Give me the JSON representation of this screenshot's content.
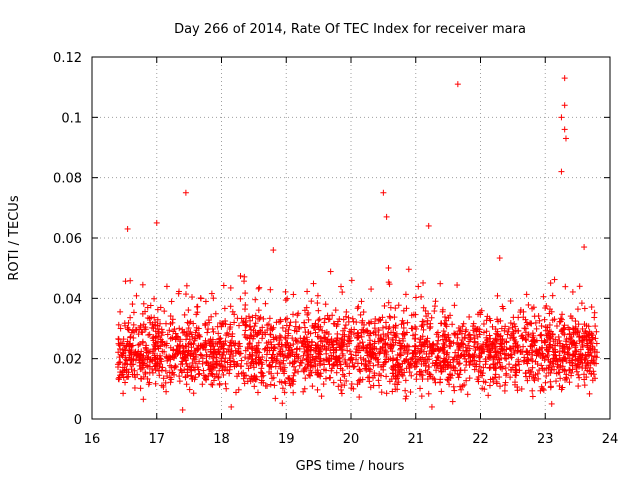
{
  "chart_data": {
    "type": "scatter",
    "title": "Day 266 of 2014, Rate Of TEC Index for receiver mara",
    "xlabel": "GPS time / hours",
    "ylabel": "ROTI / TECUs",
    "xlim": [
      16,
      24
    ],
    "ylim": [
      0,
      0.12
    ],
    "xticks": [
      "16",
      "17",
      "18",
      "19",
      "20",
      "21",
      "22",
      "23",
      "24"
    ],
    "yticks": [
      "0",
      "0.02",
      "0.04",
      "0.06",
      "0.08",
      "0.1",
      "0.12"
    ],
    "grid": true,
    "marker": "+",
    "color": "#ff0000",
    "bulk": {
      "x_range": [
        16.4,
        23.8
      ],
      "typical_y_range": [
        0.005,
        0.045
      ],
      "approx_points": 2600
    },
    "notable_points": [
      {
        "x": 16.55,
        "y": 0.063
      },
      {
        "x": 17.0,
        "y": 0.065
      },
      {
        "x": 17.45,
        "y": 0.075
      },
      {
        "x": 18.8,
        "y": 0.056
      },
      {
        "x": 20.5,
        "y": 0.075
      },
      {
        "x": 20.55,
        "y": 0.067
      },
      {
        "x": 21.2,
        "y": 0.064
      },
      {
        "x": 21.65,
        "y": 0.111
      },
      {
        "x": 23.3,
        "y": 0.113
      },
      {
        "x": 23.3,
        "y": 0.104
      },
      {
        "x": 23.25,
        "y": 0.1
      },
      {
        "x": 23.3,
        "y": 0.096
      },
      {
        "x": 23.32,
        "y": 0.093
      },
      {
        "x": 23.25,
        "y": 0.082
      },
      {
        "x": 23.6,
        "y": 0.057
      },
      {
        "x": 17.4,
        "y": 0.003
      },
      {
        "x": 18.15,
        "y": 0.004
      },
      {
        "x": 21.25,
        "y": 0.004
      },
      {
        "x": 23.1,
        "y": 0.005
      }
    ]
  }
}
